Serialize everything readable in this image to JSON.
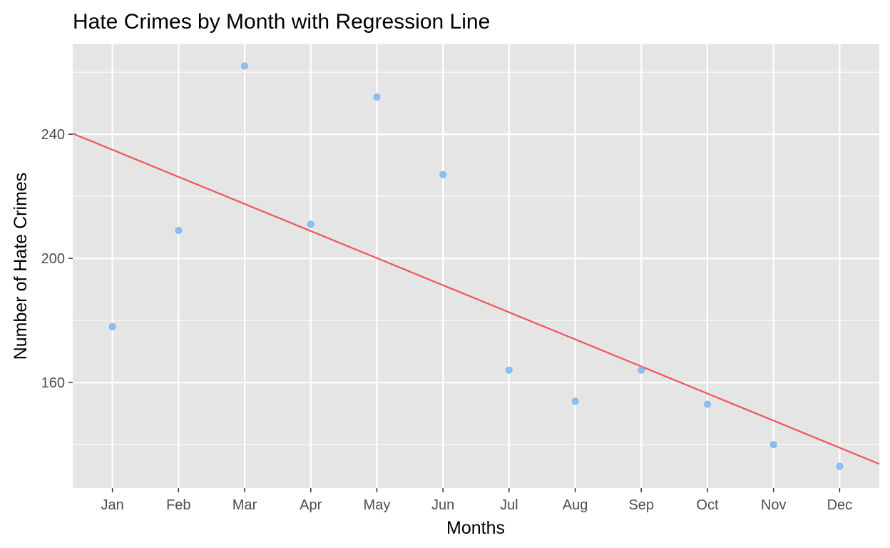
{
  "chart_data": {
    "type": "scatter",
    "title": "Hate Crimes by Month with Regression Line",
    "xlabel": "Months",
    "ylabel": "Number of Hate Crimes",
    "categories": [
      "Jan",
      "Feb",
      "Mar",
      "Apr",
      "May",
      "Jun",
      "Jul",
      "Aug",
      "Sep",
      "Oct",
      "Nov",
      "Dec"
    ],
    "values": [
      178,
      209,
      262,
      211,
      252,
      227,
      164,
      154,
      164,
      153,
      140,
      133
    ],
    "regression": {
      "start": 235,
      "end": 139
    },
    "y_ticks": [
      160,
      200,
      240
    ],
    "ylim": [
      126,
      269
    ],
    "grid": true,
    "colors": {
      "panel": "#e5e5e5",
      "grid": "#ffffff",
      "point": "#8ebff2",
      "line": "#f2545b"
    }
  }
}
